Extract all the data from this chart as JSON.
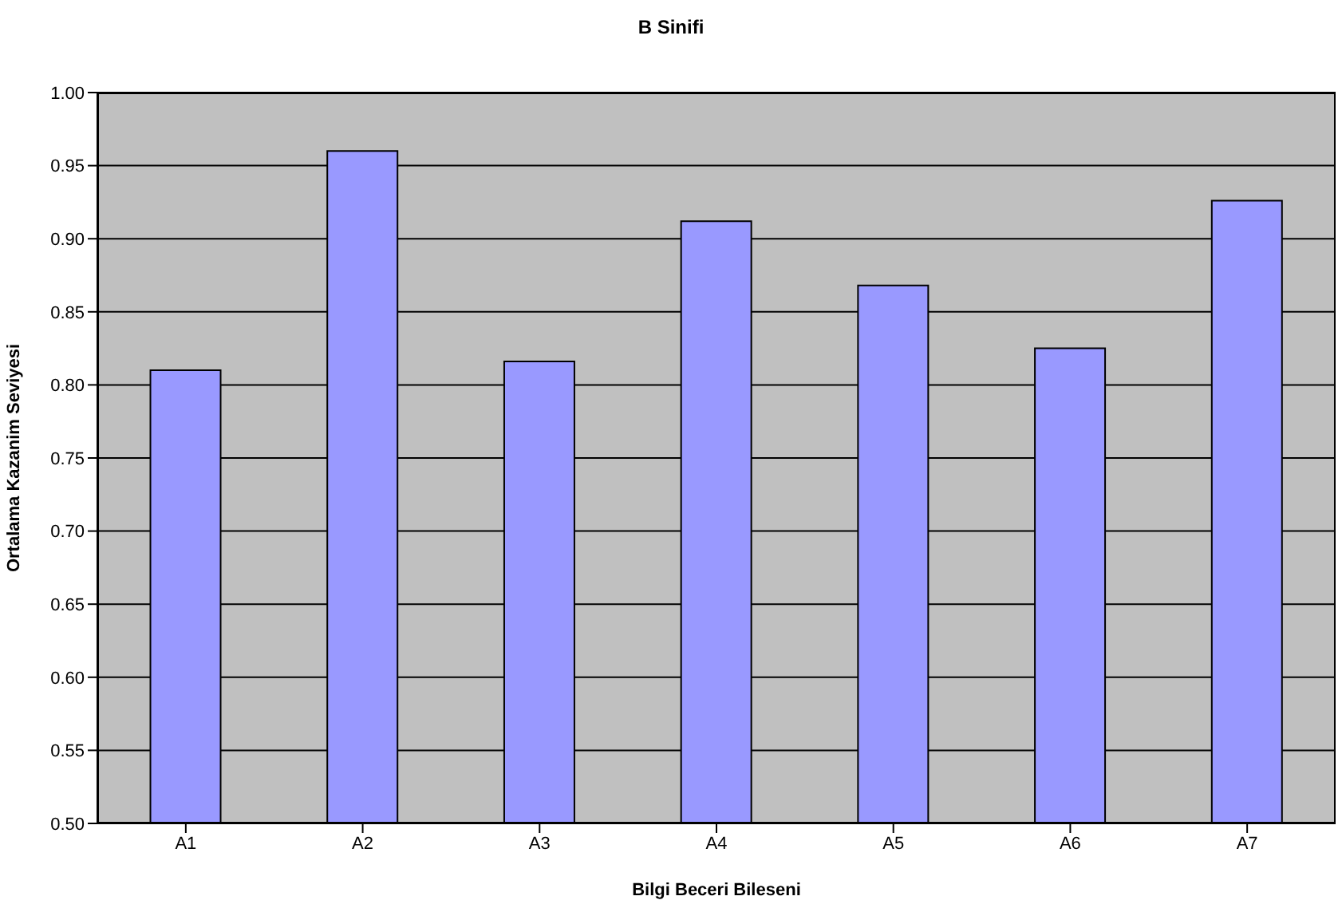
{
  "chart_data": {
    "type": "bar",
    "title": "B Sinifi",
    "xlabel": "Bilgi Beceri Bileseni",
    "ylabel": "Ortalama Kazanim Seviyesi",
    "categories": [
      "A1",
      "A2",
      "A3",
      "A4",
      "A5",
      "A6",
      "A7"
    ],
    "values": [
      0.81,
      0.96,
      0.816,
      0.912,
      0.868,
      0.825,
      0.926
    ],
    "color": "#9999ff",
    "ylim": [
      0.5,
      1.0
    ],
    "yticks": [
      {
        "value": 0.5,
        "label": "0.50"
      },
      {
        "value": 0.55,
        "label": "0.55"
      },
      {
        "value": 0.6,
        "label": "0.60"
      },
      {
        "value": 0.65,
        "label": "0.65"
      },
      {
        "value": 0.7,
        "label": "0.70"
      },
      {
        "value": 0.75,
        "label": "0.75"
      },
      {
        "value": 0.8,
        "label": "0.80"
      },
      {
        "value": 0.85,
        "label": "0.85"
      },
      {
        "value": 0.9,
        "label": "0.90"
      },
      {
        "value": 0.95,
        "label": "0.95"
      },
      {
        "value": 1.0,
        "label": "1.00"
      }
    ],
    "grid": "y"
  }
}
